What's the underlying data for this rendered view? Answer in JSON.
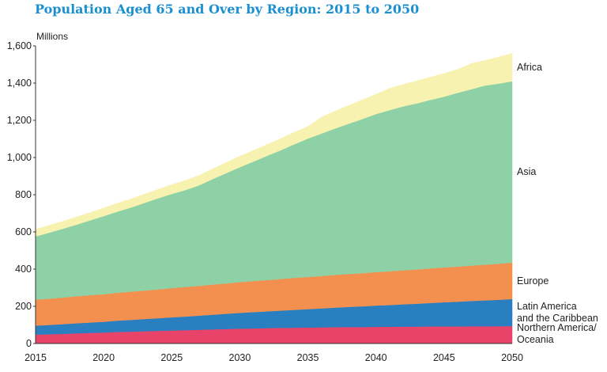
{
  "title": "Population Aged 65 and Over by Region: 2015 to 2050",
  "chart_data": {
    "type": "area",
    "stacked": true,
    "title": "Population Aged 65 and Over by Region: 2015 to 2050",
    "ylabel": "Millions",
    "xlabel": "",
    "xlim": [
      2015,
      2050
    ],
    "ylim": [
      0,
      1600
    ],
    "x_ticks": [
      "2015",
      "2020",
      "2025",
      "2030",
      "2035",
      "2040",
      "2045",
      "2050"
    ],
    "y_ticks": [
      "0",
      "200",
      "400",
      "600",
      "800",
      "1,000",
      "1,200",
      "1,400",
      "1,600"
    ],
    "x": [
      2015,
      2016,
      2017,
      2018,
      2019,
      2020,
      2021,
      2022,
      2023,
      2024,
      2025,
      2026,
      2027,
      2028,
      2029,
      2030,
      2031,
      2032,
      2033,
      2034,
      2035,
      2036,
      2037,
      2038,
      2039,
      2040,
      2041,
      2042,
      2043,
      2044,
      2045,
      2046,
      2047,
      2048,
      2049,
      2050
    ],
    "grid": false,
    "legend": "direct labels at right",
    "series": [
      {
        "name": "Northern America/ Oceania",
        "label_lines": [
          "Northern America/",
          "Oceania"
        ],
        "color": "#e8446a",
        "values": [
          48,
          50,
          52,
          55,
          57,
          59,
          62,
          64,
          66,
          68,
          70,
          72,
          74,
          76,
          78,
          80,
          81,
          83,
          84,
          85,
          86,
          87,
          88,
          89,
          89,
          90,
          90,
          91,
          91,
          92,
          92,
          92,
          93,
          93,
          93,
          94
        ]
      },
      {
        "name": "Latin America and the Caribbean",
        "label_lines": [
          "Latin America",
          "and the Caribbean"
        ],
        "color": "#2a7fc1",
        "values": [
          48,
          50,
          52,
          54,
          56,
          58,
          61,
          63,
          66,
          68,
          71,
          73,
          76,
          79,
          82,
          85,
          88,
          90,
          93,
          96,
          99,
          102,
          105,
          108,
          111,
          114,
          117,
          120,
          123,
          126,
          130,
          133,
          136,
          139,
          142,
          145
        ]
      },
      {
        "name": "Europe",
        "color": "#f4904f",
        "values": [
          140,
          141,
          143,
          145,
          147,
          148,
          150,
          152,
          153,
          155,
          157,
          159,
          160,
          162,
          163,
          165,
          167,
          168,
          170,
          172,
          173,
          174,
          176,
          177,
          178,
          180,
          181,
          183,
          184,
          186,
          187,
          189,
          190,
          192,
          194,
          196
        ]
      },
      {
        "name": "Asia",
        "color": "#8fd1a6",
        "values": [
          340,
          355,
          370,
          385,
          402,
          420,
          436,
          452,
          471,
          490,
          506,
          521,
          540,
          567,
          593,
          618,
          642,
          668,
          692,
          718,
          744,
          766,
          787,
          808,
          829,
          850,
          867,
          881,
          893,
          906,
          918,
          934,
          948,
          963,
          968,
          975
        ]
      },
      {
        "name": "Africa",
        "color": "#f7f2b0",
        "values": [
          38,
          39,
          40,
          41,
          42,
          43,
          45,
          46,
          47,
          48,
          50,
          52,
          53,
          55,
          57,
          59,
          60,
          61,
          63,
          64,
          65,
          88,
          94,
          98,
          103,
          106,
          117,
          118,
          121,
          122,
          125,
          126,
          138,
          135,
          143,
          150
        ]
      }
    ]
  }
}
